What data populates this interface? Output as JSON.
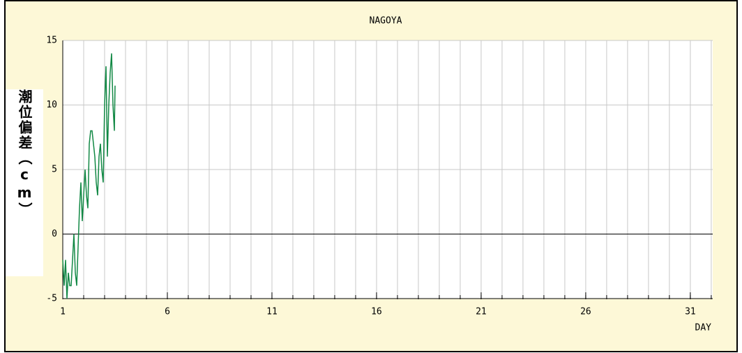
{
  "chart_data": {
    "type": "line",
    "title": "NAGOYA",
    "xlabel": "DAY",
    "ylabel": "潮位偏差（cm）",
    "x": [
      1,
      1.067,
      1.133,
      1.2,
      1.267,
      1.333,
      1.4,
      1.467,
      1.533,
      1.6,
      1.667,
      1.733,
      1.8,
      1.867,
      1.933,
      2,
      2.067,
      2.133,
      2.2,
      2.267,
      2.333,
      2.4,
      2.467,
      2.533,
      2.6,
      2.667,
      2.733,
      2.8,
      2.867,
      2.933,
      3,
      3.067,
      3.133,
      3.2,
      3.267,
      3.333,
      3.4,
      3.467,
      3.5
    ],
    "series": [
      {
        "color": "#118844",
        "values": [
          -2,
          -4,
          -2,
          -5,
          -3,
          -4,
          -4,
          -2,
          0,
          -3,
          -4,
          -1,
          2,
          4,
          1,
          3,
          5,
          3,
          2,
          7,
          8,
          8,
          7,
          6,
          4,
          3,
          6,
          7,
          5,
          4,
          10,
          13,
          6,
          10,
          12.5,
          14,
          10,
          8,
          11.5
        ]
      }
    ],
    "xlim": [
      1,
      32.07
    ],
    "ylim": [
      -5,
      15
    ],
    "xticks": [
      1,
      6,
      11,
      16,
      21,
      26,
      31
    ],
    "xminorticks": [
      1,
      2,
      3,
      4,
      5,
      6,
      7,
      8,
      9,
      10,
      11,
      12,
      13,
      14,
      15,
      16,
      17,
      18,
      19,
      20,
      21,
      22,
      23,
      24,
      25,
      26,
      27,
      28,
      29,
      30,
      31,
      32
    ],
    "yticks": [
      -5,
      0,
      5,
      10,
      15
    ],
    "grid": true
  }
}
